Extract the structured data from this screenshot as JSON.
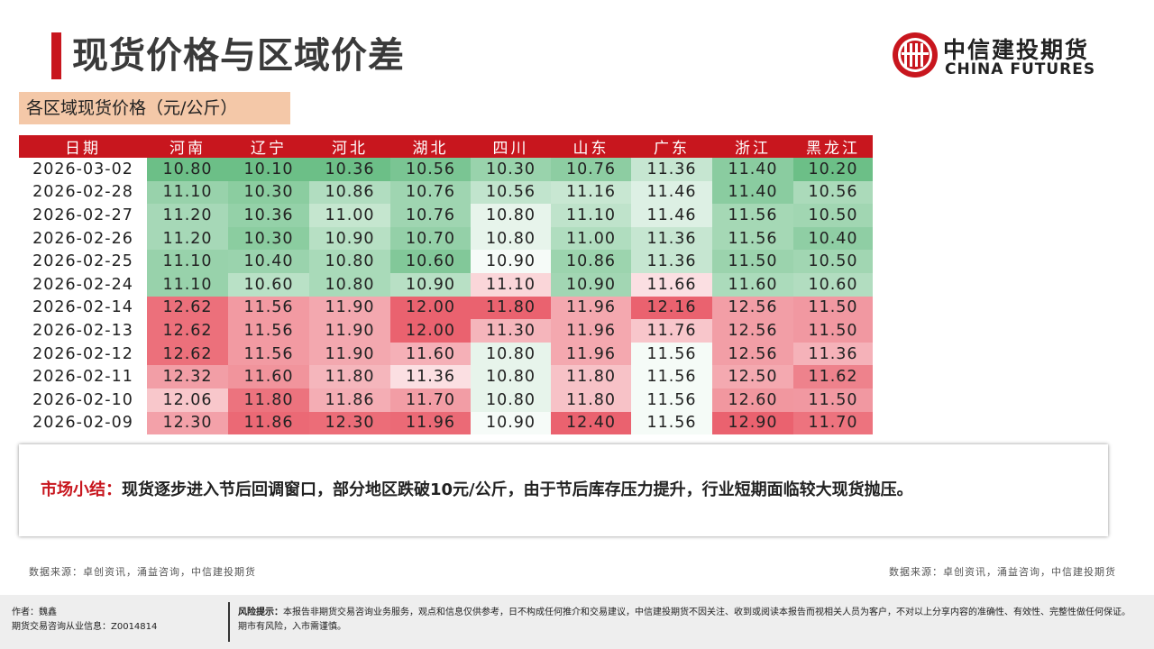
{
  "header": {
    "title": "现货价格与区域价差",
    "logo_cn": "中信建投期货",
    "logo_en": "CHINA FUTURES"
  },
  "subtitle": "各区域现货价格（元/公斤）",
  "table": {
    "columns": [
      "日期",
      "河南",
      "辽宁",
      "河北",
      "湖北",
      "四川",
      "山东",
      "广东",
      "浙江",
      "黑龙江"
    ],
    "rows": [
      {
        "date": "2026-03-02",
        "values": [
          "10.80",
          "10.10",
          "10.36",
          "10.56",
          "10.30",
          "10.76",
          "11.36",
          "11.40",
          "10.20"
        ]
      },
      {
        "date": "2026-02-28",
        "values": [
          "11.10",
          "10.30",
          "10.86",
          "10.76",
          "10.56",
          "11.16",
          "11.46",
          "11.40",
          "10.56"
        ]
      },
      {
        "date": "2026-02-27",
        "values": [
          "11.20",
          "10.36",
          "11.00",
          "10.76",
          "10.80",
          "11.10",
          "11.46",
          "11.56",
          "10.50"
        ]
      },
      {
        "date": "2026-02-26",
        "values": [
          "11.20",
          "10.30",
          "10.90",
          "10.70",
          "10.80",
          "11.00",
          "11.36",
          "11.56",
          "10.40"
        ]
      },
      {
        "date": "2026-02-25",
        "values": [
          "11.10",
          "10.40",
          "10.80",
          "10.60",
          "10.90",
          "10.86",
          "11.36",
          "11.50",
          "10.50"
        ]
      },
      {
        "date": "2026-02-24",
        "values": [
          "11.10",
          "10.60",
          "10.80",
          "10.90",
          "11.10",
          "10.90",
          "11.66",
          "11.60",
          "10.60"
        ]
      },
      {
        "date": "2026-02-14",
        "values": [
          "12.62",
          "11.56",
          "11.90",
          "12.00",
          "11.80",
          "11.96",
          "12.16",
          "12.56",
          "11.50"
        ]
      },
      {
        "date": "2026-02-13",
        "values": [
          "12.62",
          "11.56",
          "11.90",
          "12.00",
          "11.30",
          "11.96",
          "11.76",
          "12.56",
          "11.50"
        ]
      },
      {
        "date": "2026-02-12",
        "values": [
          "12.62",
          "11.56",
          "11.90",
          "11.60",
          "10.80",
          "11.96",
          "11.56",
          "12.56",
          "11.36"
        ]
      },
      {
        "date": "2026-02-11",
        "values": [
          "12.32",
          "11.60",
          "11.80",
          "11.36",
          "10.80",
          "11.80",
          "11.56",
          "12.50",
          "11.62"
        ]
      },
      {
        "date": "2026-02-10",
        "values": [
          "12.06",
          "11.80",
          "11.86",
          "11.70",
          "10.80",
          "11.80",
          "11.56",
          "12.60",
          "11.50"
        ]
      },
      {
        "date": "2026-02-09",
        "values": [
          "12.30",
          "11.86",
          "12.30",
          "11.96",
          "10.90",
          "12.40",
          "11.56",
          "12.90",
          "11.70"
        ]
      }
    ],
    "colors": {
      "header_bg": "#c8161e",
      "low": "#5cb87a",
      "high": "#e8515f"
    }
  },
  "summary": {
    "label": "市场小结：",
    "text": "现货逐步进入节后回调窗口，部分地区跌破10元/公斤，由于节后库存压力提升，行业短期面临较大现货抛压。"
  },
  "sources": {
    "left": "数据来源：卓创资讯，涌益咨询，中信建投期货",
    "right": "数据来源：卓创资讯，涌益咨询，中信建投期货"
  },
  "footer": {
    "author": "作者：魏鑫",
    "license": "期货交易咨询从业信息：Z0014814",
    "risk_label": "风险提示：",
    "risk_text": "本报告非期货交易咨询业务服务，观点和信息仅供参考，日不构成任何推介和交易建议，中信建投期货不因关注、收到或阅读本报告而视相关人员为客户，不对以上分享内容的准确性、有效性、完整性做任何保证。期市有风险，入市需谨慎。"
  }
}
